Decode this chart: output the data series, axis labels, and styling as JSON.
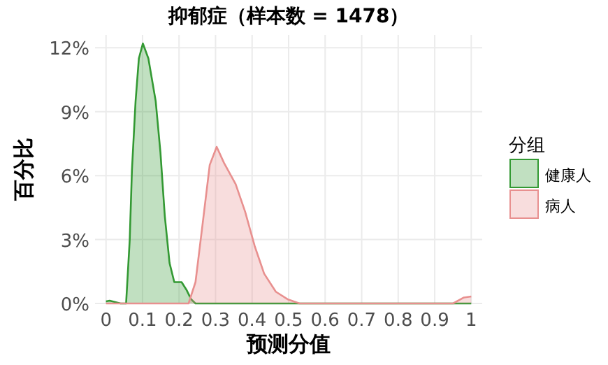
{
  "chart_data": {
    "type": "area",
    "title": "抑郁症（样本数 = 1478）",
    "xlabel": "预测分值",
    "ylabel": "百分比",
    "legend_title": "分组",
    "series": [
      {
        "name": "健康人",
        "color": "#339933",
        "x": [
          0,
          0.01,
          0.04,
          0.055,
          0.065,
          0.071,
          0.081,
          0.09,
          0.101,
          0.116,
          0.136,
          0.149,
          0.161,
          0.174,
          0.187,
          0.207,
          0.22,
          0.233,
          0.245,
          0.5,
          1.0
        ],
        "values": [
          0.1,
          0.13,
          0,
          0,
          3.0,
          6.25,
          9.5,
          11.5,
          12.2,
          11.5,
          9.5,
          7.1,
          4.1,
          1.9,
          1.0,
          1.0,
          0.65,
          0.2,
          0,
          0,
          0
        ]
      },
      {
        "name": "病人",
        "color": "#e8908f",
        "x": [
          0,
          0.2,
          0.226,
          0.245,
          0.265,
          0.284,
          0.303,
          0.323,
          0.355,
          0.381,
          0.407,
          0.433,
          0.465,
          0.497,
          0.53,
          0.95,
          0.98,
          1.0
        ],
        "values": [
          0,
          0,
          0,
          1.0,
          3.8,
          6.5,
          7.35,
          6.6,
          5.6,
          4.3,
          2.7,
          1.4,
          0.55,
          0.2,
          0,
          0,
          0.28,
          0.33
        ]
      }
    ],
    "xlim": [
      -0.03,
      1.03
    ],
    "ylim": [
      0,
      12.6
    ],
    "xticks": [
      0,
      0.1,
      0.2,
      0.3,
      0.4,
      0.5,
      0.6,
      0.7,
      0.8,
      0.9,
      1
    ],
    "yticks": [
      {
        "value": 0,
        "label": "0%"
      },
      {
        "value": 3,
        "label": "3%"
      },
      {
        "value": 6,
        "label": "6%"
      },
      {
        "value": 9,
        "label": "9%"
      },
      {
        "value": 12,
        "label": "12%"
      }
    ],
    "grid": true,
    "legend": "right"
  }
}
